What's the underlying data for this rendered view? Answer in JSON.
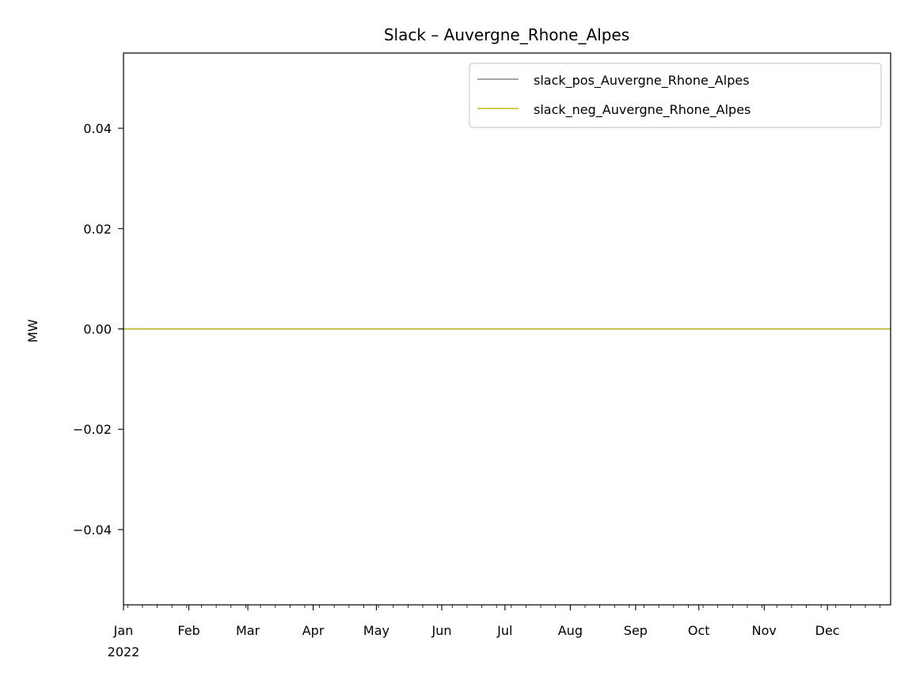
{
  "chart_data": {
    "type": "line",
    "title": "Slack – Auvergne_Rhone_Alpes",
    "xlabel": "",
    "ylabel": "MW",
    "xlim": [
      "2022-01-01",
      "2022-12-31"
    ],
    "ylim": [
      -0.055,
      0.055
    ],
    "grid": false,
    "legend": "top-right",
    "x_ticks": [
      {
        "date": "2022-01-01",
        "label": "Jan"
      },
      {
        "date": "2022-02-01",
        "label": "Feb"
      },
      {
        "date": "2022-03-01",
        "label": "Mar"
      },
      {
        "date": "2022-04-01",
        "label": "Apr"
      },
      {
        "date": "2022-05-01",
        "label": "May"
      },
      {
        "date": "2022-06-01",
        "label": "Jun"
      },
      {
        "date": "2022-07-01",
        "label": "Jul"
      },
      {
        "date": "2022-08-01",
        "label": "Aug"
      },
      {
        "date": "2022-09-01",
        "label": "Sep"
      },
      {
        "date": "2022-10-01",
        "label": "Oct"
      },
      {
        "date": "2022-11-01",
        "label": "Nov"
      },
      {
        "date": "2022-12-01",
        "label": "Dec"
      }
    ],
    "x_year_label": "2022",
    "y_ticks": [
      {
        "value": 0.04,
        "label": "0.04"
      },
      {
        "value": 0.02,
        "label": "0.02"
      },
      {
        "value": 0.0,
        "label": "0.00"
      },
      {
        "value": -0.02,
        "label": "−0.02"
      },
      {
        "value": -0.04,
        "label": "−0.04"
      }
    ],
    "series": [
      {
        "name": "slack_pos_Auvergne_Rhone_Alpes",
        "color": "#8c8c8c",
        "x": [
          "2022-01-01",
          "2022-12-31"
        ],
        "values": [
          0,
          0
        ]
      },
      {
        "name": "slack_neg_Auvergne_Rhone_Alpes",
        "color": "#bcbd22",
        "x": [
          "2022-01-01",
          "2022-12-31"
        ],
        "values": [
          0,
          0
        ]
      }
    ]
  }
}
